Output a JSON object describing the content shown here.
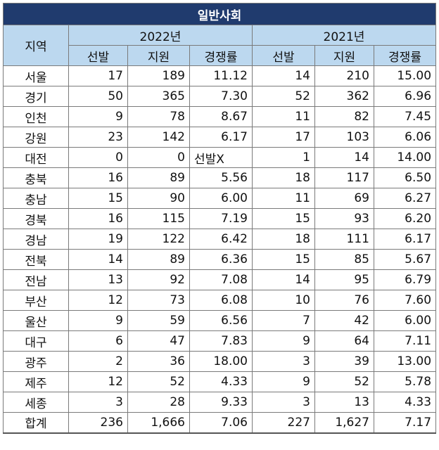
{
  "table": {
    "title": "일반사회",
    "region_header": "지역",
    "years": [
      "2022년",
      "2021년"
    ],
    "subheaders": [
      "선발",
      "지원",
      "경쟁률"
    ],
    "rows": [
      {
        "region": "서울",
        "y2022": [
          "17",
          "189",
          "11.12"
        ],
        "y2021": [
          "14",
          "210",
          "15.00"
        ]
      },
      {
        "region": "경기",
        "y2022": [
          "50",
          "365",
          "7.30"
        ],
        "y2021": [
          "52",
          "362",
          "6.96"
        ]
      },
      {
        "region": "인천",
        "y2022": [
          "9",
          "78",
          "8.67"
        ],
        "y2021": [
          "11",
          "82",
          "7.45"
        ]
      },
      {
        "region": "강원",
        "y2022": [
          "23",
          "142",
          "6.17"
        ],
        "y2021": [
          "17",
          "103",
          "6.06"
        ]
      },
      {
        "region": "대전",
        "y2022": [
          "0",
          "0",
          "선발X"
        ],
        "y2021": [
          "1",
          "14",
          "14.00"
        ]
      },
      {
        "region": "충북",
        "y2022": [
          "16",
          "89",
          "5.56"
        ],
        "y2021": [
          "18",
          "117",
          "6.50"
        ]
      },
      {
        "region": "충남",
        "y2022": [
          "15",
          "90",
          "6.00"
        ],
        "y2021": [
          "11",
          "69",
          "6.27"
        ]
      },
      {
        "region": "경북",
        "y2022": [
          "16",
          "115",
          "7.19"
        ],
        "y2021": [
          "15",
          "93",
          "6.20"
        ]
      },
      {
        "region": "경남",
        "y2022": [
          "19",
          "122",
          "6.42"
        ],
        "y2021": [
          "18",
          "111",
          "6.17"
        ]
      },
      {
        "region": "전북",
        "y2022": [
          "14",
          "89",
          "6.36"
        ],
        "y2021": [
          "15",
          "85",
          "5.67"
        ]
      },
      {
        "region": "전남",
        "y2022": [
          "13",
          "92",
          "7.08"
        ],
        "y2021": [
          "14",
          "95",
          "6.79"
        ]
      },
      {
        "region": "부산",
        "y2022": [
          "12",
          "73",
          "6.08"
        ],
        "y2021": [
          "10",
          "76",
          "7.60"
        ]
      },
      {
        "region": "울산",
        "y2022": [
          "9",
          "59",
          "6.56"
        ],
        "y2021": [
          "7",
          "42",
          "6.00"
        ]
      },
      {
        "region": "대구",
        "y2022": [
          "6",
          "47",
          "7.83"
        ],
        "y2021": [
          "9",
          "64",
          "7.11"
        ]
      },
      {
        "region": "광주",
        "y2022": [
          "2",
          "36",
          "18.00"
        ],
        "y2021": [
          "3",
          "39",
          "13.00"
        ]
      },
      {
        "region": "제주",
        "y2022": [
          "12",
          "52",
          "4.33"
        ],
        "y2021": [
          "9",
          "52",
          "5.78"
        ]
      },
      {
        "region": "세종",
        "y2022": [
          "3",
          "28",
          "9.33"
        ],
        "y2021": [
          "3",
          "13",
          "4.33"
        ]
      },
      {
        "region": "합계",
        "y2022": [
          "236",
          "1,666",
          "7.06"
        ],
        "y2021": [
          "227",
          "1,627",
          "7.17"
        ]
      }
    ]
  }
}
